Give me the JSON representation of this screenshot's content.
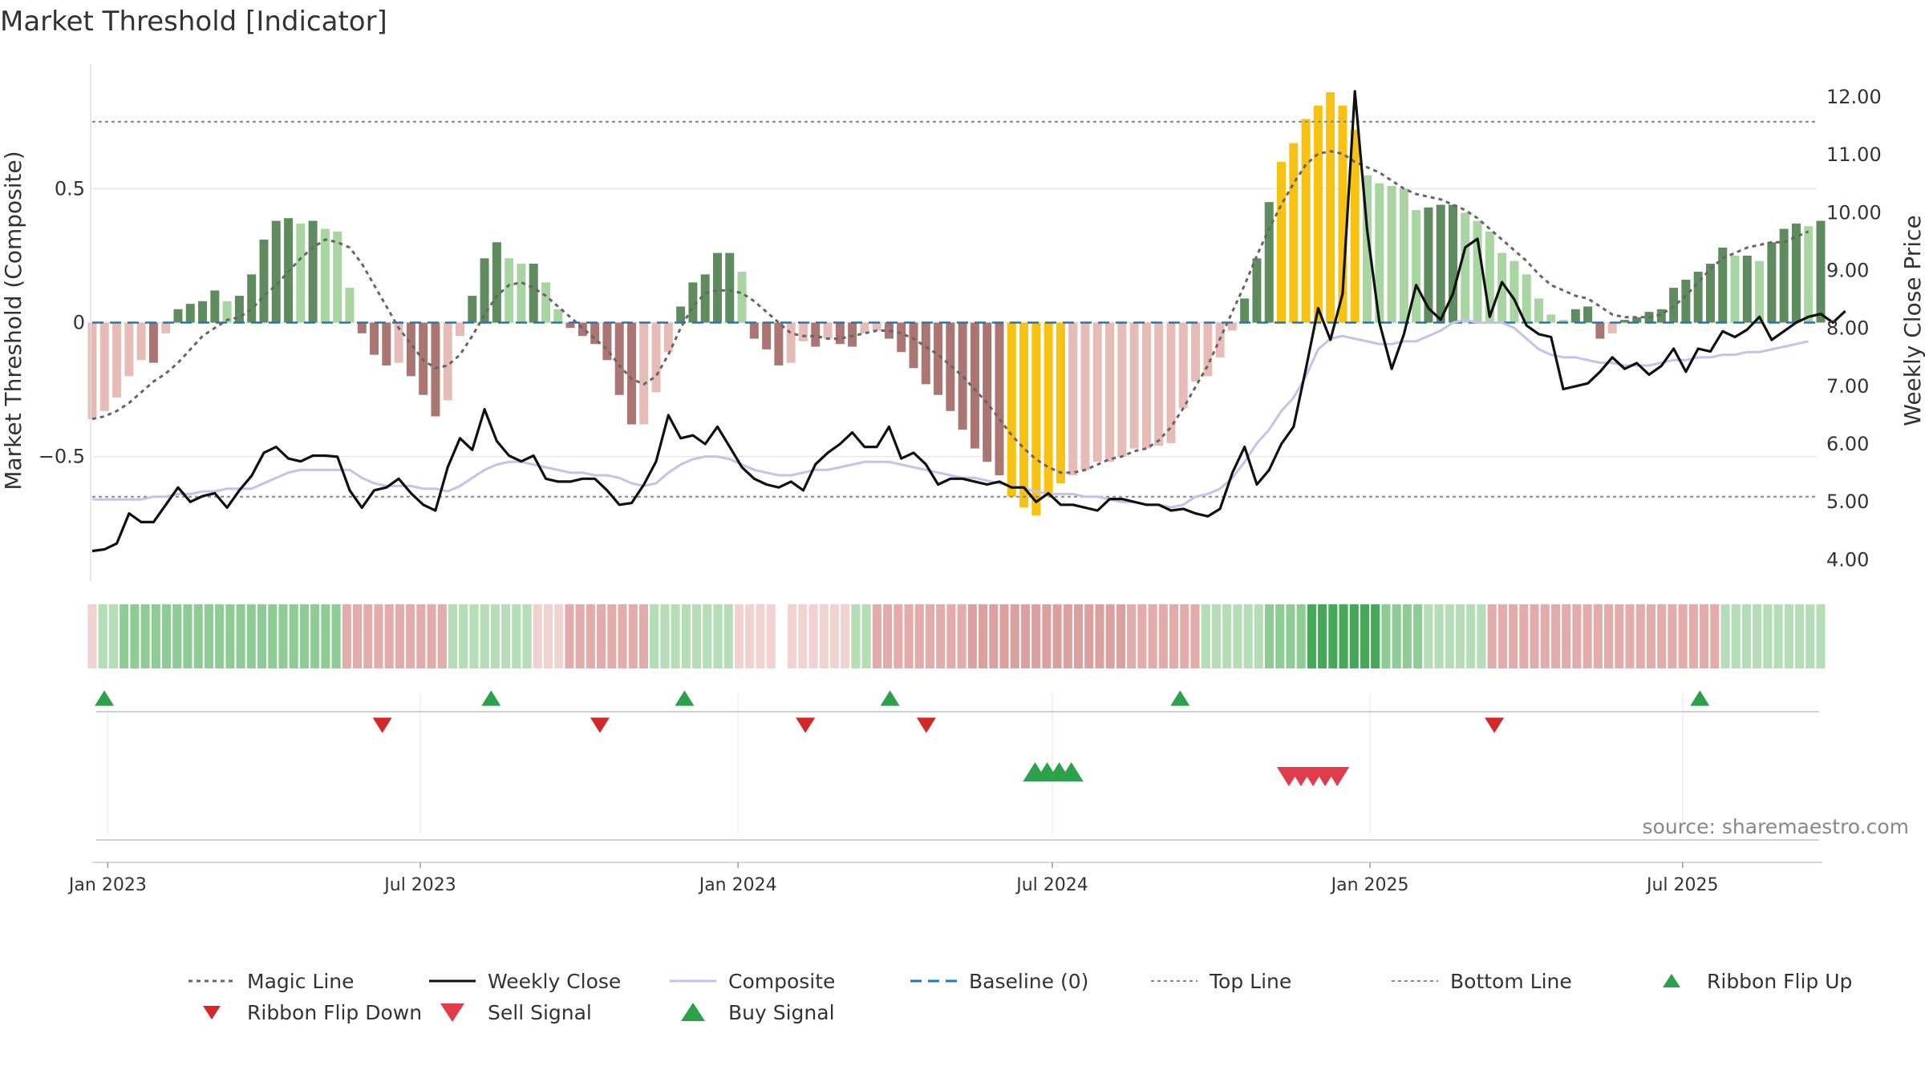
{
  "chart_data": {
    "type": "bar",
    "title": "Market Threshold [Indicator]",
    "ylabel_left": "Market Threshold (Composite)",
    "ylabel_right": "Weekly Close Price",
    "source": "source: sharemaestro.com",
    "x_start": "2022-12-23",
    "x_end": "2025-09-19",
    "x_ticks": [
      {
        "date": "2023-01-01",
        "label": "Jan 2023"
      },
      {
        "date": "2023-07-01",
        "label": "Jul 2023"
      },
      {
        "date": "2024-01-01",
        "label": "Jan 2024"
      },
      {
        "date": "2024-07-01",
        "label": "Jul 2024"
      },
      {
        "date": "2025-01-01",
        "label": "Jan 2025"
      },
      {
        "date": "2025-07-01",
        "label": "Jul 2025"
      }
    ],
    "y_left_range": [
      -0.95,
      0.95
    ],
    "y_left_ticks": [
      {
        "value": 0.5,
        "label": "0.5"
      },
      {
        "value": 0,
        "label": "0"
      },
      {
        "value": -0.5,
        "label": "−0.5"
      }
    ],
    "y_right_range": [
      3.7,
      12.5
    ],
    "y_right_ticks": [
      {
        "value": 12,
        "label": "12.00"
      },
      {
        "value": 11,
        "label": "11.00"
      },
      {
        "value": 10,
        "label": "10.00"
      },
      {
        "value": 9,
        "label": "9.00"
      },
      {
        "value": 8,
        "label": "8.00"
      },
      {
        "value": 7,
        "label": "7.00"
      },
      {
        "value": 6,
        "label": "6.00"
      },
      {
        "value": 5,
        "label": "5.00"
      },
      {
        "value": 4,
        "label": "4.00"
      }
    ],
    "top_line": 0.75,
    "bottom_line": -0.65,
    "baseline": 0,
    "composite_bars": [
      -0.36,
      -0.33,
      -0.28,
      -0.2,
      -0.14,
      -0.15,
      -0.04,
      0.05,
      0.07,
      0.08,
      0.12,
      0.08,
      0.1,
      0.18,
      0.31,
      0.38,
      0.39,
      0.37,
      0.38,
      0.35,
      0.34,
      0.13,
      -0.04,
      -0.12,
      -0.16,
      -0.15,
      -0.2,
      -0.27,
      -0.35,
      -0.29,
      -0.05,
      0.1,
      0.24,
      0.3,
      0.24,
      0.22,
      0.22,
      0.15,
      0.05,
      -0.02,
      -0.05,
      -0.08,
      -0.14,
      -0.27,
      -0.38,
      -0.38,
      -0.26,
      -0.11,
      0.06,
      0.15,
      0.18,
      0.26,
      0.26,
      0.19,
      -0.06,
      -0.1,
      -0.16,
      -0.15,
      -0.07,
      -0.09,
      -0.06,
      -0.08,
      -0.09,
      -0.04,
      -0.03,
      -0.06,
      -0.11,
      -0.17,
      -0.23,
      -0.27,
      -0.33,
      -0.4,
      -0.47,
      -0.52,
      -0.57,
      -0.65,
      -0.69,
      -0.72,
      -0.65,
      -0.6,
      -0.57,
      -0.55,
      -0.52,
      -0.52,
      -0.5,
      -0.47,
      -0.47,
      -0.46,
      -0.45,
      -0.32,
      -0.22,
      -0.2,
      -0.13,
      -0.03,
      0.09,
      0.24,
      0.45,
      0.6,
      0.67,
      0.76,
      0.81,
      0.86,
      0.81,
      0.72,
      0.55,
      0.52,
      0.51,
      0.5,
      0.42,
      0.43,
      0.44,
      0.44,
      0.41,
      0.38,
      0.34,
      0.26,
      0.23,
      0.18,
      0.09,
      0.03,
      0.01,
      0.05,
      0.06,
      -0.06,
      -0.04,
      0.01,
      0.02,
      0.04,
      0.05,
      0.13,
      0.16,
      0.19,
      0.22,
      0.28,
      0.25,
      0.25,
      0.23,
      0.3,
      0.35,
      0.37,
      0.36,
      0.38
    ],
    "magic_line": [
      -0.36,
      -0.35,
      -0.33,
      -0.3,
      -0.26,
      -0.22,
      -0.19,
      -0.15,
      -0.1,
      -0.05,
      -0.02,
      0.01,
      0.02,
      0.05,
      0.1,
      0.14,
      0.19,
      0.24,
      0.28,
      0.31,
      0.3,
      0.28,
      0.22,
      0.14,
      0.06,
      -0.02,
      -0.08,
      -0.14,
      -0.17,
      -0.16,
      -0.12,
      -0.05,
      0.03,
      0.1,
      0.14,
      0.15,
      0.13,
      0.1,
      0.06,
      0.02,
      -0.02,
      -0.06,
      -0.1,
      -0.16,
      -0.21,
      -0.23,
      -0.2,
      -0.12,
      -0.02,
      0.06,
      0.11,
      0.12,
      0.12,
      0.11,
      0.08,
      0.04,
      0.0,
      -0.04,
      -0.05,
      -0.05,
      -0.06,
      -0.06,
      -0.05,
      -0.04,
      -0.03,
      -0.03,
      -0.04,
      -0.06,
      -0.09,
      -0.12,
      -0.16,
      -0.2,
      -0.25,
      -0.3,
      -0.36,
      -0.42,
      -0.47,
      -0.51,
      -0.54,
      -0.56,
      -0.56,
      -0.55,
      -0.53,
      -0.51,
      -0.5,
      -0.48,
      -0.47,
      -0.44,
      -0.39,
      -0.32,
      -0.24,
      -0.16,
      -0.06,
      0.04,
      0.14,
      0.25,
      0.35,
      0.44,
      0.52,
      0.59,
      0.63,
      0.64,
      0.63,
      0.6,
      0.58,
      0.56,
      0.53,
      0.5,
      0.48,
      0.47,
      0.46,
      0.44,
      0.42,
      0.39,
      0.35,
      0.31,
      0.27,
      0.23,
      0.18,
      0.14,
      0.12,
      0.1,
      0.09,
      0.06,
      0.03,
      0.02,
      0.02,
      0.02,
      0.03,
      0.06,
      0.1,
      0.15,
      0.2,
      0.24,
      0.26,
      0.28,
      0.29,
      0.3,
      0.3,
      0.32,
      0.34
    ],
    "composite_line": [
      -0.66,
      -0.66,
      -0.66,
      -0.66,
      -0.66,
      -0.65,
      -0.65,
      -0.64,
      -0.64,
      -0.63,
      -0.63,
      -0.62,
      -0.62,
      -0.62,
      -0.6,
      -0.58,
      -0.56,
      -0.55,
      -0.55,
      -0.55,
      -0.55,
      -0.55,
      -0.58,
      -0.6,
      -0.61,
      -0.61,
      -0.61,
      -0.62,
      -0.62,
      -0.63,
      -0.61,
      -0.58,
      -0.55,
      -0.53,
      -0.52,
      -0.52,
      -0.53,
      -0.54,
      -0.55,
      -0.56,
      -0.56,
      -0.57,
      -0.57,
      -0.58,
      -0.6,
      -0.61,
      -0.6,
      -0.56,
      -0.53,
      -0.51,
      -0.5,
      -0.5,
      -0.51,
      -0.53,
      -0.55,
      -0.56,
      -0.57,
      -0.57,
      -0.56,
      -0.55,
      -0.55,
      -0.54,
      -0.53,
      -0.52,
      -0.52,
      -0.52,
      -0.53,
      -0.54,
      -0.55,
      -0.56,
      -0.57,
      -0.58,
      -0.58,
      -0.59,
      -0.6,
      -0.61,
      -0.62,
      -0.63,
      -0.64,
      -0.64,
      -0.64,
      -0.65,
      -0.65,
      -0.66,
      -0.67,
      -0.67,
      -0.68,
      -0.68,
      -0.69,
      -0.68,
      -0.65,
      -0.64,
      -0.62,
      -0.58,
      -0.52,
      -0.45,
      -0.4,
      -0.33,
      -0.28,
      -0.2,
      -0.1,
      -0.06,
      -0.05,
      -0.06,
      -0.07,
      -0.08,
      -0.08,
      -0.07,
      -0.07,
      -0.05,
      -0.03,
      0.0,
      0.01,
      0.0,
      0.0,
      0.0,
      -0.02,
      -0.06,
      -0.1,
      -0.12,
      -0.13,
      -0.13,
      -0.14,
      -0.15,
      -0.15,
      -0.16,
      -0.16,
      -0.16,
      -0.15,
      -0.14,
      -0.14,
      -0.13,
      -0.13,
      -0.12,
      -0.12,
      -0.11,
      -0.11,
      -0.1,
      -0.09,
      -0.08,
      -0.07
    ],
    "weekly_close": [
      4.15,
      4.18,
      4.28,
      4.8,
      4.65,
      4.65,
      4.95,
      5.25,
      5.0,
      5.1,
      5.15,
      4.9,
      5.2,
      5.45,
      5.85,
      5.95,
      5.75,
      5.7,
      5.8,
      5.8,
      5.78,
      5.2,
      4.9,
      5.2,
      5.25,
      5.4,
      5.15,
      4.95,
      4.85,
      5.6,
      6.1,
      5.9,
      6.6,
      6.05,
      5.8,
      5.7,
      5.8,
      5.4,
      5.35,
      5.35,
      5.4,
      5.4,
      5.2,
      4.95,
      4.98,
      5.3,
      5.7,
      6.5,
      6.1,
      6.15,
      6.0,
      6.3,
      5.95,
      5.6,
      5.4,
      5.3,
      5.25,
      5.35,
      5.2,
      5.65,
      5.85,
      6.0,
      6.2,
      5.95,
      5.95,
      6.3,
      5.75,
      5.85,
      5.65,
      5.3,
      5.4,
      5.4,
      5.35,
      5.3,
      5.35,
      5.25,
      5.25,
      5.0,
      5.15,
      4.95,
      4.95,
      4.9,
      4.85,
      5.05,
      5.05,
      5.0,
      4.95,
      4.95,
      4.85,
      4.88,
      4.8,
      4.75,
      4.88,
      5.5,
      5.95,
      5.3,
      5.55,
      6.0,
      6.3,
      7.3,
      8.35,
      7.8,
      8.6,
      12.1,
      9.7,
      8.1,
      7.3,
      7.9,
      8.75,
      8.35,
      8.15,
      8.6,
      9.4,
      9.55,
      8.2,
      8.8,
      8.5,
      8.05,
      7.9,
      7.85,
      6.95,
      7.0,
      7.05,
      7.25,
      7.5,
      7.3,
      7.4,
      7.2,
      7.35,
      7.65,
      7.25,
      7.65,
      7.6,
      7.95,
      7.85,
      7.98,
      8.2,
      7.8,
      7.95,
      8.1,
      8.2,
      8.25,
      8.1,
      8.3
    ],
    "ribbon": [
      -1,
      1,
      1,
      2,
      2,
      2,
      2,
      2,
      2,
      2,
      2,
      2,
      2,
      2,
      2,
      2,
      2,
      2,
      2,
      2,
      2,
      2,
      2,
      2,
      -2,
      -2,
      -2,
      -2,
      -2,
      -2,
      -2,
      -2,
      -2,
      -2,
      1,
      1,
      1,
      1,
      1,
      1,
      1,
      1,
      -1,
      -1,
      -1,
      -2,
      -2,
      -2,
      -2,
      -2,
      -2,
      -2,
      -2,
      1,
      1,
      1,
      1,
      1,
      1,
      1,
      1,
      -1,
      -1,
      -1,
      -1,
      0,
      -1,
      -1,
      -1,
      -1,
      -1,
      -1,
      1,
      1,
      -2,
      -2,
      -2,
      -2,
      -2,
      -2,
      -2,
      -2,
      -2,
      -3,
      -3,
      -3,
      -3,
      -3,
      -3,
      -3,
      -3,
      -3,
      -3,
      -3,
      -3,
      -3,
      -3,
      -3,
      -2,
      -2,
      -2,
      -2,
      -2,
      -2,
      -2,
      1,
      1,
      1,
      1,
      1,
      1,
      2,
      2,
      2,
      2,
      3,
      3,
      3,
      3,
      3,
      3,
      3,
      2,
      2,
      2,
      2,
      1,
      1,
      1,
      1,
      1,
      1,
      -2,
      -2,
      -2,
      -2,
      -2,
      -2,
      -2,
      -2,
      -2,
      -2,
      -2,
      -2,
      -2,
      -2,
      -2,
      -2,
      -2,
      -2,
      -2,
      -2,
      -2,
      -2,
      1,
      1,
      1,
      1,
      1,
      1,
      1,
      1,
      1,
      1
    ],
    "ribbon_flip_up_dates": [
      "2022-12-30",
      "2023-08-11",
      "2023-12-01",
      "2024-03-29",
      "2024-09-13",
      "2025-07-11"
    ],
    "ribbon_flip_down_dates": [
      "2023-06-09",
      "2023-10-13",
      "2024-02-09",
      "2024-04-19",
      "2025-03-14"
    ],
    "buy_signal_dates": [
      "2024-06-21",
      "2024-06-28",
      "2024-07-05",
      "2024-07-12"
    ],
    "sell_signal_dates": [
      "2024-11-15",
      "2024-11-22",
      "2024-11-29",
      "2024-12-06",
      "2024-12-13"
    ],
    "legend": [
      {
        "name": "Magic Line",
        "style": "dotted",
        "color": "#666666"
      },
      {
        "name": "Weekly Close",
        "style": "solid",
        "color": "#111111"
      },
      {
        "name": "Composite",
        "style": "solid",
        "color": "#c6c0ec"
      },
      {
        "name": "Baseline (0)",
        "style": "dashed",
        "color": "#1f77b4"
      },
      {
        "name": "Top Line",
        "style": "dotted-thin",
        "color": "#888888"
      },
      {
        "name": "Bottom Line",
        "style": "dotted-thin",
        "color": "#888888"
      },
      {
        "name": "Ribbon Flip Up",
        "style": "triangle-up-small",
        "color": "#2ca04a"
      },
      {
        "name": "Ribbon Flip Down",
        "style": "triangle-down-small",
        "color": "#d62728"
      },
      {
        "name": "Sell Signal",
        "style": "triangle-down",
        "color": "#e03c4a"
      },
      {
        "name": "Buy Signal",
        "style": "triangle-up",
        "color": "#2ca04a"
      }
    ],
    "colors": {
      "bar_pos_strong": "#5e8c5e",
      "bar_pos_weak": "#a8d5a2",
      "bar_neg_strong": "#ab7672",
      "bar_neg_weak": "#e8bcb6",
      "bar_extreme": "#f8c215",
      "ribbon_pos_1": "#b5ddb6",
      "ribbon_pos_2": "#8fcb94",
      "ribbon_pos_3": "#45a856",
      "ribbon_neg_1": "#f0d3d1",
      "ribbon_neg_2": "#e2acaa",
      "ribbon_neg_3": "#dba19f",
      "grid": "#e8e8e8"
    }
  }
}
